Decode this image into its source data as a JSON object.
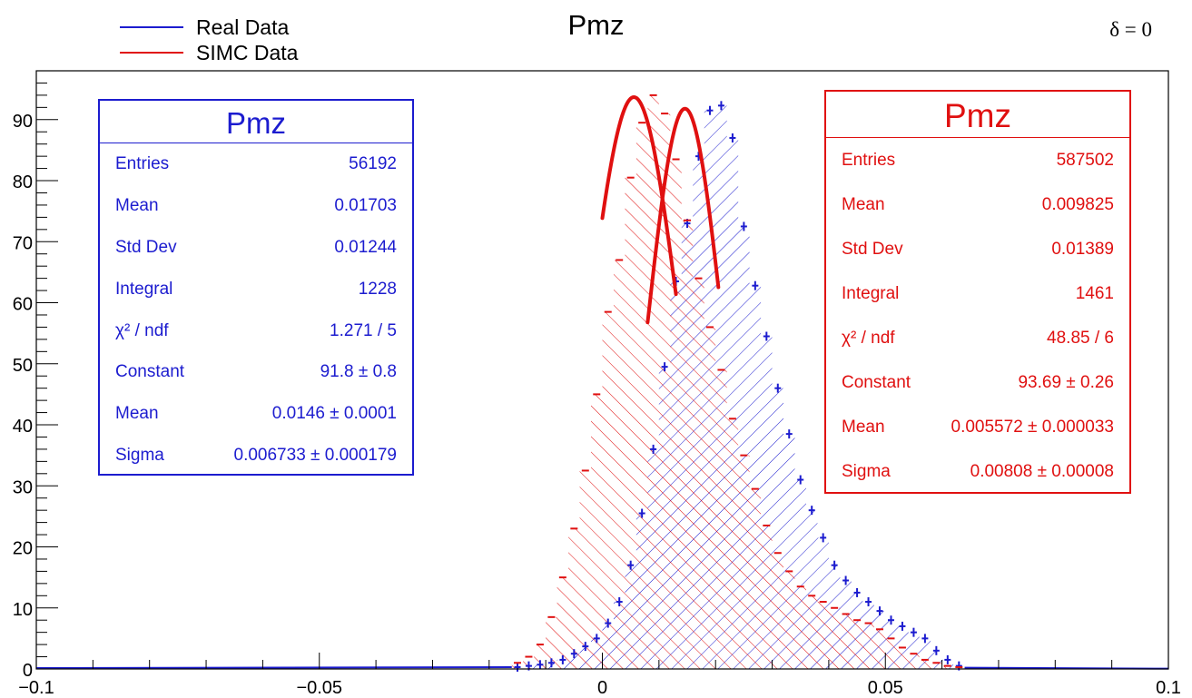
{
  "title": "Pmz",
  "corner_label": "δ = 0",
  "legend": [
    {
      "label": "Real Data",
      "color": "#1c1ccf"
    },
    {
      "label": "SIMC Data",
      "color": "#e01010"
    }
  ],
  "stats_real": {
    "title": "Pmz",
    "rows": [
      {
        "label": "Entries",
        "value": "56192"
      },
      {
        "label": "Mean",
        "value": "0.01703"
      },
      {
        "label": "Std Dev",
        "value": "0.01244"
      },
      {
        "label": "Integral",
        "value": "1228"
      },
      {
        "label": "χ² / ndf",
        "value": "1.271 / 5"
      },
      {
        "label": "Constant",
        "value": "91.8 ± 0.8"
      },
      {
        "label": "Mean",
        "value": "0.0146 ± 0.0001"
      },
      {
        "label": "Sigma",
        "value": "0.006733 ± 0.000179"
      }
    ]
  },
  "stats_simc": {
    "title": "Pmz",
    "rows": [
      {
        "label": "Entries",
        "value": "587502"
      },
      {
        "label": "Mean",
        "value": "0.009825"
      },
      {
        "label": "Std Dev",
        "value": "0.01389"
      },
      {
        "label": "Integral",
        "value": "1461"
      },
      {
        "label": "χ² / ndf",
        "value": "48.85 / 6"
      },
      {
        "label": "Constant",
        "value": "93.69 ± 0.26"
      },
      {
        "label": "Mean",
        "value": "0.005572 ± 0.000033"
      },
      {
        "label": "Sigma",
        "value": "0.00808 ± 0.00008"
      }
    ]
  },
  "chart_data": {
    "type": "histogram",
    "title": "Pmz",
    "xlim": [
      -0.1,
      0.1
    ],
    "ylim": [
      0,
      98
    ],
    "xticks": [
      -0.1,
      -0.05,
      0,
      0.05,
      0.1
    ],
    "xtick_labels": [
      "−0.1",
      "−0.05",
      "0",
      "0.05",
      "0.1"
    ],
    "yticks": [
      0,
      10,
      20,
      30,
      40,
      50,
      60,
      70,
      80,
      90
    ],
    "bin_width": 0.002,
    "series": [
      {
        "name": "Real Data",
        "color": "#1c1ccf",
        "bin_centers": [
          -0.015,
          -0.013,
          -0.011,
          -0.009,
          -0.007,
          -0.005,
          -0.003,
          -0.001,
          0.001,
          0.003,
          0.005,
          0.007,
          0.009,
          0.011,
          0.013,
          0.015,
          0.017,
          0.019,
          0.021,
          0.023,
          0.025,
          0.027,
          0.029,
          0.031,
          0.033,
          0.035,
          0.037,
          0.039,
          0.041,
          0.043,
          0.045,
          0.047,
          0.049,
          0.051,
          0.053,
          0.055,
          0.057,
          0.059,
          0.061,
          0.063
        ],
        "values": [
          0.3,
          0.5,
          0.7,
          1,
          1.5,
          2.5,
          3.7,
          5,
          7.5,
          11,
          17,
          25.5,
          36,
          49.5,
          63.5,
          73,
          84,
          91.5,
          92.3,
          87,
          72.5,
          62.8,
          54.5,
          46,
          38.5,
          31,
          26,
          21.5,
          17,
          14.5,
          12.5,
          11,
          9.5,
          8,
          7,
          6,
          5,
          3,
          1.5,
          0.5
        ],
        "fit": {
          "constant": 91.8,
          "mean": 0.0146,
          "sigma": 0.006733,
          "range": [
            0.008,
            0.0205
          ]
        }
      },
      {
        "name": "SIMC Data",
        "color": "#e01010",
        "bin_centers": [
          -0.015,
          -0.013,
          -0.011,
          -0.009,
          -0.007,
          -0.005,
          -0.003,
          -0.001,
          0.001,
          0.003,
          0.005,
          0.007,
          0.009,
          0.011,
          0.013,
          0.015,
          0.017,
          0.019,
          0.021,
          0.023,
          0.025,
          0.027,
          0.029,
          0.031,
          0.033,
          0.035,
          0.037,
          0.039,
          0.041,
          0.043,
          0.045,
          0.047,
          0.049,
          0.051,
          0.053,
          0.055,
          0.057,
          0.059,
          0.061,
          0.063
        ],
        "values": [
          1,
          2,
          4,
          8.5,
          15,
          23,
          32.5,
          45,
          58.5,
          67,
          80.5,
          89.5,
          94,
          91,
          83.5,
          73.5,
          64,
          56,
          49,
          41,
          35,
          29.5,
          23.5,
          19,
          16,
          13.5,
          12,
          11,
          10,
          9,
          8,
          7.5,
          6.5,
          5,
          3.5,
          2.5,
          1.5,
          1,
          0.5,
          0.3
        ],
        "fit": {
          "constant": 93.69,
          "mean": 0.005572,
          "sigma": 0.00808,
          "range": [
            0.0,
            0.013
          ]
        }
      }
    ]
  }
}
